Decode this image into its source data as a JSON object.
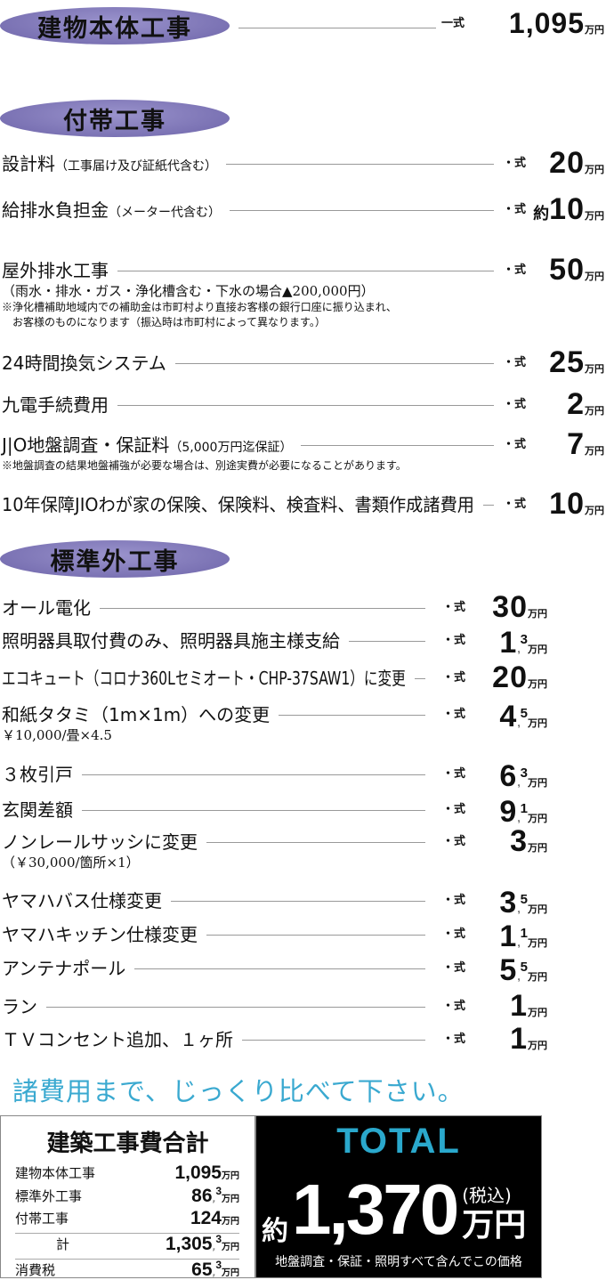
{
  "main": {
    "header": "建物本体工事",
    "shiki": "一式",
    "value": "1,095",
    "unit": "万円"
  },
  "futai": {
    "header": "付帯工事",
    "items": [
      {
        "label": "設計料",
        "small": "（工事届け及び証紙代含む）",
        "shiki": "・式",
        "int": "20",
        "unit": "万円"
      },
      {
        "label": "給排水負担金",
        "small": "（メーター代含む）",
        "shiki": "・式",
        "prefix": "約",
        "int": "10",
        "unit": "万円"
      },
      {
        "label": "屋外排水工事",
        "small": "",
        "shiki": "・式",
        "int": "50",
        "unit": "万円",
        "sub": [
          "（雨水・排水・ガス・浄化槽含む・下水の場合▲200,000円）",
          "※浄化槽補助地域内での補助金は市町村より直接お客様の銀行口座に振り込まれ、",
          "　お客様のものになります（振込時は市町村によって異なります。）"
        ]
      },
      {
        "label": "24時間換気システム",
        "small": "",
        "shiki": "・式",
        "int": "25",
        "unit": "万円"
      },
      {
        "label": "九電手続費用",
        "small": "",
        "shiki": "・式",
        "int": "2",
        "unit": "万円"
      },
      {
        "label": "J|O地盤調査・保証料",
        "small": "（5,000万円迄保証）",
        "shiki": "・式",
        "int": "7",
        "unit": "万円",
        "sub": [
          "※地盤調査の結果地盤補強が必要な場合は、別途実費が必要になることがあります。"
        ]
      },
      {
        "label": "10年保障JIOわが家の保険、保険料、検査料、書類作成諸費用",
        "small": "",
        "shiki": "・式",
        "int": "10",
        "unit": "万円"
      }
    ]
  },
  "hyojungai": {
    "header": "標準外工事",
    "items": [
      {
        "label": "オール電化",
        "shiki": "・式",
        "int": "30",
        "unit": "万円"
      },
      {
        "label": "照明器具取付費のみ、照明器具施主様支給",
        "shiki": "・式",
        "int": "1",
        "dec": "3",
        "unit": "万円"
      },
      {
        "label": "エコキュート（コロナ360Lセミオート・CHP-37SAW1）に変更",
        "shiki": "・式",
        "int": "20",
        "unit": "万円"
      },
      {
        "label": "和紙タタミ（1m×1m）への変更",
        "shiki": "・式",
        "int": "4",
        "dec": "5",
        "unit": "万円",
        "sub": [
          "￥10,000/畳×4.5"
        ]
      },
      {
        "label": "３枚引戸",
        "shiki": "・式",
        "int": "6",
        "dec": "3",
        "unit": "万円"
      },
      {
        "label": "玄関差額",
        "shiki": "・式",
        "int": "9",
        "dec": "1",
        "unit": "万円"
      },
      {
        "label": "ノンレールサッシに変更",
        "shiki": "・式",
        "int": "3",
        "unit": "万円",
        "sub": [
          "（￥30,000/箇所×1）"
        ]
      },
      {
        "label": "ヤマハバス仕様変更",
        "shiki": "・式",
        "int": "3",
        "dec": "5",
        "unit": "万円"
      },
      {
        "label": "ヤマハキッチン仕様変更",
        "shiki": "・式",
        "int": "1",
        "dec": "1",
        "unit": "万円"
      },
      {
        "label": "アンテナポール",
        "shiki": "・式",
        "int": "5",
        "dec": "5",
        "unit": "万円"
      },
      {
        "label": "ラン",
        "shiki": "・式",
        "int": "1",
        "unit": "万円"
      },
      {
        "label": "ＴＶコンセント追加、１ヶ所",
        "shiki": "・式",
        "int": "1",
        "unit": "万円"
      }
    ]
  },
  "slogan": "諸費用まで、じっくり比べて下さい。",
  "summary": {
    "title": "建築工事費合計",
    "rows": [
      {
        "label": "建物本体工事",
        "int": "1,095",
        "unit": "万円"
      },
      {
        "label": "標準外工事",
        "int": "86",
        "dec": "3",
        "unit": "万円"
      },
      {
        "label": "付帯工事",
        "int": "124",
        "unit": "万円"
      },
      {
        "label": "計",
        "int": "1,305",
        "dec": "3",
        "unit": "万円"
      },
      {
        "label": "消費税",
        "int": "65",
        "dec": "3",
        "unit": "万円"
      }
    ]
  },
  "total": {
    "title": "TOTAL",
    "prefix": "約",
    "value": "1,370",
    "tax": "(税込)",
    "unit": "万円",
    "note": "地盤調査・保証・照明すべて含んでこの価格",
    "accent": "#2aa8cc"
  }
}
